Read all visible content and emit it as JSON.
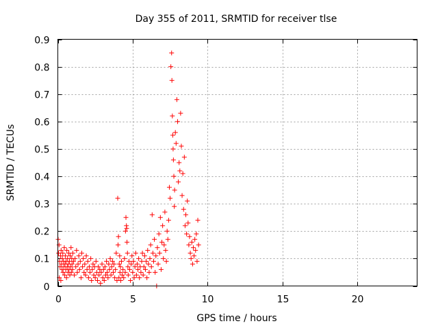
{
  "chart_data": {
    "type": "scatter",
    "title": "Day 355 of 2011, SRMTID for receiver tlse",
    "xlabel": "GPS time / hours",
    "ylabel": "SRMTID / TECUs",
    "xlim": [
      0,
      24
    ],
    "ylim": [
      0,
      0.9
    ],
    "x_ticks": [
      0,
      5,
      10,
      15,
      20
    ],
    "x_tick_labels": [
      "0",
      "5",
      "10",
      "15",
      "20"
    ],
    "y_ticks": [
      0,
      0.1,
      0.2,
      0.3,
      0.4,
      0.5,
      0.6,
      0.7,
      0.8,
      0.9
    ],
    "y_tick_labels": [
      "0",
      "0.1",
      "0.2",
      "0.3",
      "0.4",
      "0.5",
      "0.6",
      "0.7",
      "0.8",
      "0.9"
    ],
    "grid": true,
    "marker": "+",
    "color": "#ff0000",
    "series": [
      {
        "name": "SRMTID",
        "points": [
          [
            0.02,
            0.17
          ],
          [
            0.05,
            0.12
          ],
          [
            0.08,
            0.15
          ],
          [
            0.1,
            0.03
          ],
          [
            0.12,
            0.09
          ],
          [
            0.15,
            0.07
          ],
          [
            0.18,
            0.11
          ],
          [
            0.2,
            0.02
          ],
          [
            0.22,
            0.13
          ],
          [
            0.25,
            0.08
          ],
          [
            0.28,
            0.06
          ],
          [
            0.3,
            0.1
          ],
          [
            0.33,
            0.12
          ],
          [
            0.35,
            0.05
          ],
          [
            0.38,
            0.09
          ],
          [
            0.4,
            0.07
          ],
          [
            0.43,
            0.14
          ],
          [
            0.45,
            0.04
          ],
          [
            0.48,
            0.08
          ],
          [
            0.5,
            0.11
          ],
          [
            0.53,
            0.06
          ],
          [
            0.55,
            0.09
          ],
          [
            0.58,
            0.03
          ],
          [
            0.6,
            0.13
          ],
          [
            0.63,
            0.07
          ],
          [
            0.65,
            0.1
          ],
          [
            0.68,
            0.05
          ],
          [
            0.7,
            0.08
          ],
          [
            0.73,
            0.12
          ],
          [
            0.75,
            0.06
          ],
          [
            0.78,
            0.09
          ],
          [
            0.8,
            0.04
          ],
          [
            0.83,
            0.11
          ],
          [
            0.85,
            0.07
          ],
          [
            0.88,
            0.14
          ],
          [
            0.9,
            0.05
          ],
          [
            0.93,
            0.1
          ],
          [
            0.95,
            0.08
          ],
          [
            0.98,
            0.06
          ],
          [
            1.0,
            0.12
          ],
          [
            1.05,
            0.09
          ],
          [
            1.1,
            0.04
          ],
          [
            1.15,
            0.1
          ],
          [
            1.2,
            0.07
          ],
          [
            1.25,
            0.13
          ],
          [
            1.3,
            0.05
          ],
          [
            1.35,
            0.08
          ],
          [
            1.4,
            0.11
          ],
          [
            1.45,
            0.06
          ],
          [
            1.5,
            0.09
          ],
          [
            1.55,
            0.03
          ],
          [
            1.6,
            0.12
          ],
          [
            1.65,
            0.07
          ],
          [
            1.7,
            0.1
          ],
          [
            1.75,
            0.05
          ],
          [
            1.8,
            0.08
          ],
          [
            1.85,
            0.04
          ],
          [
            1.9,
            0.11
          ],
          [
            1.95,
            0.06
          ],
          [
            2.0,
            0.09
          ],
          [
            2.05,
            0.03
          ],
          [
            2.1,
            0.07
          ],
          [
            2.15,
            0.05
          ],
          [
            2.2,
            0.1
          ],
          [
            2.25,
            0.02
          ],
          [
            2.3,
            0.06
          ],
          [
            2.35,
            0.08
          ],
          [
            2.4,
            0.04
          ],
          [
            2.45,
            0.07
          ],
          [
            2.5,
            0.03
          ],
          [
            2.55,
            0.09
          ],
          [
            2.6,
            0.05
          ],
          [
            2.65,
            0.02
          ],
          [
            2.7,
            0.07
          ],
          [
            2.75,
            0.04
          ],
          [
            2.8,
            0.06
          ],
          [
            2.85,
            0.01
          ],
          [
            2.9,
            0.05
          ],
          [
            2.95,
            0.08
          ],
          [
            3.0,
            0.03
          ],
          [
            3.05,
            0.06
          ],
          [
            3.1,
            0.02
          ],
          [
            3.15,
            0.07
          ],
          [
            3.2,
            0.04
          ],
          [
            3.25,
            0.09
          ],
          [
            3.3,
            0.05
          ],
          [
            3.35,
            0.03
          ],
          [
            3.4,
            0.08
          ],
          [
            3.45,
            0.06
          ],
          [
            3.5,
            0.1
          ],
          [
            3.55,
            0.04
          ],
          [
            3.6,
            0.07
          ],
          [
            3.65,
            0.09
          ],
          [
            3.7,
            0.05
          ],
          [
            3.75,
            0.08
          ],
          [
            3.8,
            0.03
          ],
          [
            3.85,
            0.06
          ],
          [
            3.9,
            0.12
          ],
          [
            3.95,
            0.02
          ],
          [
            4.0,
            0.32
          ],
          [
            4.02,
            0.15
          ],
          [
            4.05,
            0.18
          ],
          [
            4.08,
            0.03
          ],
          [
            4.1,
            0.08
          ],
          [
            4.13,
            0.11
          ],
          [
            4.15,
            0.05
          ],
          [
            4.18,
            0.07
          ],
          [
            4.2,
            0.02
          ],
          [
            4.25,
            0.09
          ],
          [
            4.3,
            0.04
          ],
          [
            4.35,
            0.06
          ],
          [
            4.4,
            0.03
          ],
          [
            4.45,
            0.1
          ],
          [
            4.5,
            0.05
          ],
          [
            4.52,
            0.2
          ],
          [
            4.55,
            0.25
          ],
          [
            4.58,
            0.22
          ],
          [
            4.6,
            0.21
          ],
          [
            4.62,
            0.16
          ],
          [
            4.65,
            0.12
          ],
          [
            4.68,
            0.07
          ],
          [
            4.7,
            0.04
          ],
          [
            4.75,
            0.09
          ],
          [
            4.8,
            0.06
          ],
          [
            4.85,
            0.02
          ],
          [
            4.9,
            0.08
          ],
          [
            4.95,
            0.11
          ],
          [
            5.0,
            0.05
          ],
          [
            5.05,
            0.09
          ],
          [
            5.1,
            0.03
          ],
          [
            5.15,
            0.07
          ],
          [
            5.2,
            0.12
          ],
          [
            5.25,
            0.04
          ],
          [
            5.3,
            0.08
          ],
          [
            5.35,
            0.06
          ],
          [
            5.4,
            0.1
          ],
          [
            5.45,
            0.03
          ],
          [
            5.5,
            0.07
          ],
          [
            5.55,
            0.05
          ],
          [
            5.6,
            0.09
          ],
          [
            5.65,
            0.12
          ],
          [
            5.7,
            0.04
          ],
          [
            5.75,
            0.07
          ],
          [
            5.8,
            0.11
          ],
          [
            5.85,
            0.06
          ],
          [
            5.9,
            0.09
          ],
          [
            5.95,
            0.03
          ],
          [
            6.0,
            0.13
          ],
          [
            6.05,
            0.08
          ],
          [
            6.1,
            0.05
          ],
          [
            6.15,
            0.1
          ],
          [
            6.2,
            0.15
          ],
          [
            6.25,
            0.07
          ],
          [
            6.3,
            0.26
          ],
          [
            6.35,
            0.12
          ],
          [
            6.4,
            0.09
          ],
          [
            6.45,
            0.17
          ],
          [
            6.5,
            0.05
          ],
          [
            6.55,
            0.11
          ],
          [
            6.6,
            0.0
          ],
          [
            6.65,
            0.14
          ],
          [
            6.7,
            0.08
          ],
          [
            6.75,
            0.19
          ],
          [
            6.8,
            0.12
          ],
          [
            6.85,
            0.25
          ],
          [
            6.9,
            0.06
          ],
          [
            6.95,
            0.16
          ],
          [
            7.0,
            0.22
          ],
          [
            7.05,
            0.1
          ],
          [
            7.1,
            0.15
          ],
          [
            7.15,
            0.27
          ],
          [
            7.2,
            0.13
          ],
          [
            7.25,
            0.09
          ],
          [
            7.3,
            0.2
          ],
          [
            7.35,
            0.17
          ],
          [
            7.4,
            0.24
          ],
          [
            7.45,
            0.36
          ],
          [
            7.5,
            0.32
          ],
          [
            7.55,
            0.8
          ],
          [
            7.6,
            0.85
          ],
          [
            7.62,
            0.75
          ],
          [
            7.65,
            0.62
          ],
          [
            7.68,
            0.55
          ],
          [
            7.7,
            0.5
          ],
          [
            7.72,
            0.46
          ],
          [
            7.75,
            0.4
          ],
          [
            7.78,
            0.29
          ],
          [
            7.8,
            0.35
          ],
          [
            7.85,
            0.56
          ],
          [
            7.9,
            0.52
          ],
          [
            7.95,
            0.68
          ],
          [
            8.0,
            0.6
          ],
          [
            8.05,
            0.38
          ],
          [
            8.1,
            0.45
          ],
          [
            8.15,
            0.42
          ],
          [
            8.2,
            0.63
          ],
          [
            8.25,
            0.51
          ],
          [
            8.3,
            0.33
          ],
          [
            8.35,
            0.41
          ],
          [
            8.4,
            0.28
          ],
          [
            8.45,
            0.47
          ],
          [
            8.5,
            0.22
          ],
          [
            8.55,
            0.26
          ],
          [
            8.6,
            0.19
          ],
          [
            8.65,
            0.31
          ],
          [
            8.7,
            0.23
          ],
          [
            8.75,
            0.15
          ],
          [
            8.8,
            0.18
          ],
          [
            8.85,
            0.12
          ],
          [
            8.9,
            0.1
          ],
          [
            8.95,
            0.16
          ],
          [
            9.0,
            0.08
          ],
          [
            9.05,
            0.14
          ],
          [
            9.1,
            0.11
          ],
          [
            9.15,
            0.17
          ],
          [
            9.2,
            0.13
          ],
          [
            9.25,
            0.19
          ],
          [
            9.3,
            0.09
          ],
          [
            9.35,
            0.24
          ],
          [
            9.4,
            0.15
          ]
        ]
      }
    ]
  }
}
